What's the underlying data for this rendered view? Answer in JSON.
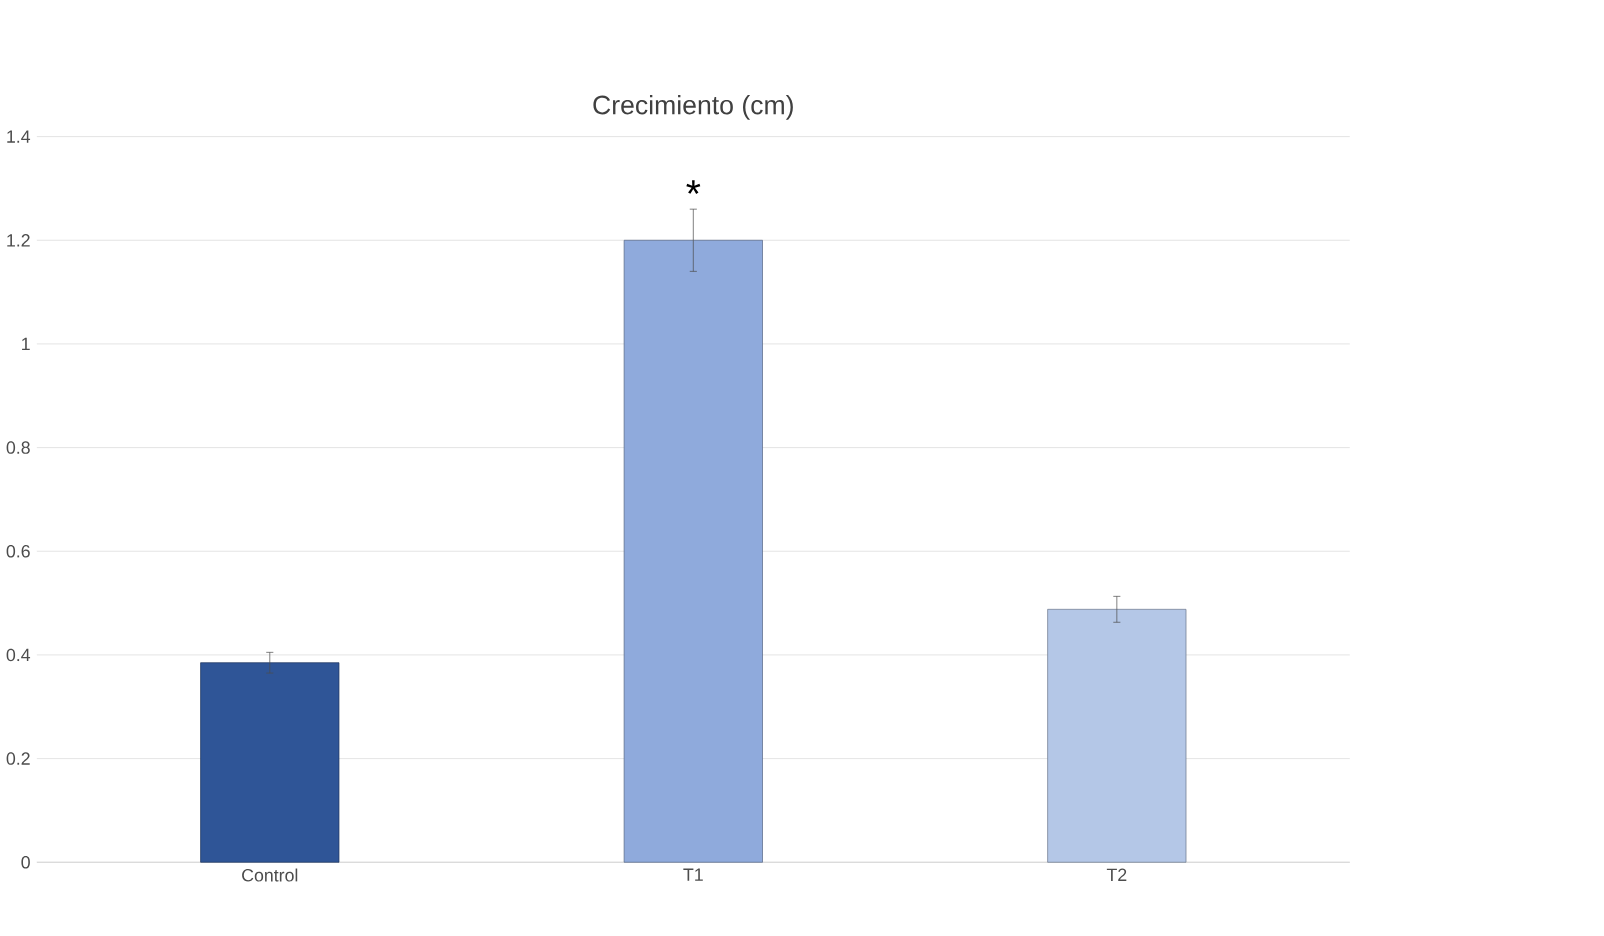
{
  "chart_data": {
    "type": "bar",
    "title": "Crecimiento (cm)",
    "categories": [
      "Control",
      "T1",
      "T2"
    ],
    "values": [
      0.385,
      1.2,
      0.488
    ],
    "errors": [
      0.02,
      0.06,
      0.025
    ],
    "colors": [
      "#2f5597",
      "#8faadc",
      "#b4c7e7"
    ],
    "ylim": [
      0,
      1.4
    ],
    "yticks": [
      0,
      0.2,
      0.4,
      0.6,
      0.8,
      1,
      1.2,
      1.4
    ],
    "grid": "y",
    "annotations": [
      "*"
    ]
  }
}
